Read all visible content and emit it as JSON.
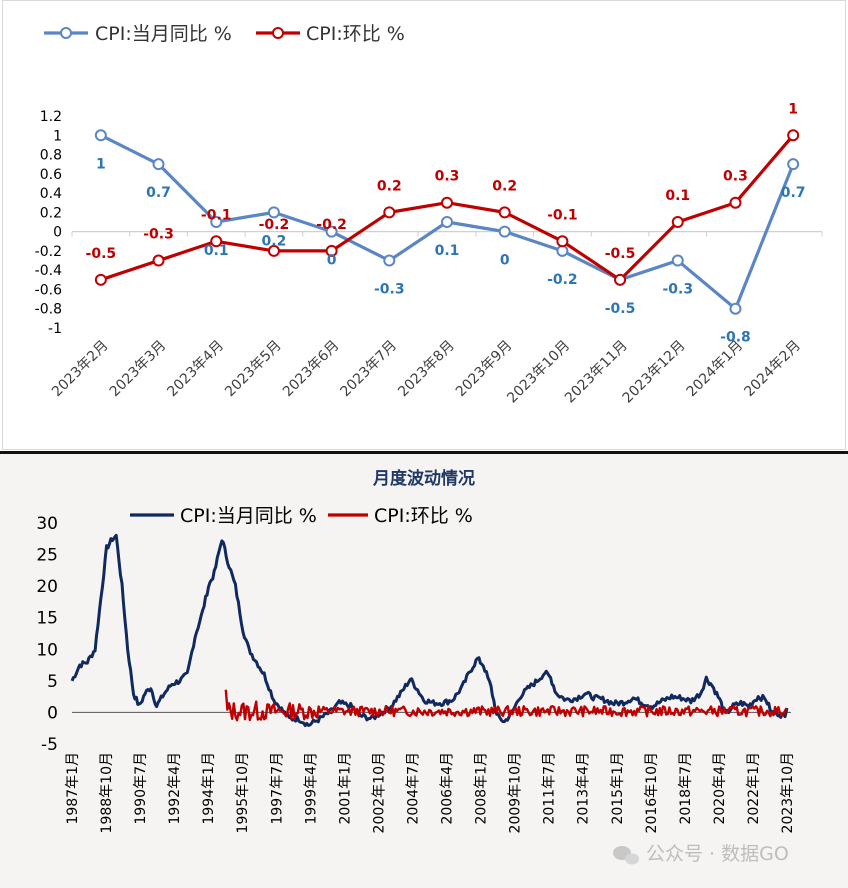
{
  "chart_data": [
    {
      "type": "line",
      "title": "",
      "categories": [
        "2023年2月",
        "2023年3月",
        "2023年4月",
        "2023年5月",
        "2023年6月",
        "2023年7月",
        "2023年8月",
        "2023年9月",
        "2023年10月",
        "2023年11月",
        "2023年12月",
        "2024年1月",
        "2024年2月"
      ],
      "ylim": [
        -1,
        1.2
      ],
      "yticks": [
        "1.2",
        "1",
        "0.8",
        "0.6",
        "0.4",
        "0.2",
        "0",
        "-0.2",
        "-0.4",
        "-0.6",
        "-0.8",
        "-1"
      ],
      "legend": "top-left",
      "series": [
        {
          "name": "CPI:当月同比 %",
          "color": "#5b86c4",
          "values": [
            1,
            0.7,
            0.1,
            0.2,
            0,
            -0.3,
            0.1,
            0,
            -0.2,
            -0.5,
            -0.3,
            -0.8,
            0.7
          ],
          "labels": [
            "1",
            "0.7",
            "0.1",
            "0.2",
            "0",
            "-0.3",
            "0.1",
            "0",
            "-0.2",
            "-0.5",
            "-0.3",
            "-0.8",
            "0.7"
          ]
        },
        {
          "name": "CPI:环比 %",
          "color": "#c00000",
          "values": [
            -0.5,
            -0.3,
            -0.1,
            -0.2,
            -0.2,
            0.2,
            0.3,
            0.2,
            -0.1,
            -0.5,
            0.1,
            0.3,
            1
          ],
          "labels": [
            "-0.5",
            "-0.3",
            "-0.1",
            "-0.2",
            "-0.2",
            "0.2",
            "0.3",
            "0.2",
            "-0.1",
            "-0.5",
            "0.1",
            "0.3",
            "1"
          ]
        }
      ]
    },
    {
      "type": "line",
      "title": "月度波动情况",
      "ylim": [
        -5,
        30
      ],
      "yticks": [
        "30",
        "25",
        "20",
        "15",
        "10",
        "5",
        "0",
        "-5"
      ],
      "xticks": [
        "1987年1月",
        "1988年10月",
        "1990年7月",
        "1992年4月",
        "1994年1月",
        "1995年10月",
        "1997年7月",
        "1999年4月",
        "2001年1月",
        "2002年10月",
        "2004年7月",
        "2006年4月",
        "2008年1月",
        "2009年10月",
        "2011年7月",
        "2013年4月",
        "2015年1月",
        "2016年10月",
        "2018年7月",
        "2020年4月",
        "2022年1月",
        "2023年10月"
      ],
      "legend": "top",
      "series": [
        {
          "name": "CPI:当月同比 %",
          "color": "#102a5f",
          "anchors": [
            [
              1987.0,
              5
            ],
            [
              1987.4,
              7.5
            ],
            [
              1987.8,
              8
            ],
            [
              1988.2,
              10
            ],
            [
              1988.5,
              18
            ],
            [
              1988.8,
              26
            ],
            [
              1989.1,
              27.5
            ],
            [
              1989.3,
              28
            ],
            [
              1989.6,
              20
            ],
            [
              1989.9,
              10
            ],
            [
              1990.2,
              3
            ],
            [
              1990.5,
              1
            ],
            [
              1990.8,
              3
            ],
            [
              1991.1,
              4
            ],
            [
              1991.4,
              1
            ],
            [
              1991.8,
              3
            ],
            [
              1992.2,
              4.5
            ],
            [
              1992.6,
              5
            ],
            [
              1993.0,
              6
            ],
            [
              1993.4,
              12
            ],
            [
              1993.8,
              16
            ],
            [
              1994.1,
              20
            ],
            [
              1994.4,
              22
            ],
            [
              1994.8,
              27.5
            ],
            [
              1995.1,
              24
            ],
            [
              1995.5,
              20
            ],
            [
              1995.9,
              13
            ],
            [
              1996.2,
              10
            ],
            [
              1996.6,
              8
            ],
            [
              1997.0,
              6
            ],
            [
              1997.5,
              2
            ],
            [
              1997.9,
              0.5
            ],
            [
              1998.3,
              -1
            ],
            [
              1998.8,
              -1
            ],
            [
              1999.3,
              -2
            ],
            [
              1999.9,
              -1
            ],
            [
              2000.4,
              0
            ],
            [
              2000.9,
              1.5
            ],
            [
              2001.5,
              1
            ],
            [
              2002.0,
              -0.5
            ],
            [
              2002.6,
              -1
            ],
            [
              2003.1,
              0
            ],
            [
              2003.6,
              1
            ],
            [
              2004.1,
              3
            ],
            [
              2004.6,
              5.3
            ],
            [
              2004.9,
              4
            ],
            [
              2005.3,
              2
            ],
            [
              2005.8,
              1.5
            ],
            [
              2006.3,
              1.5
            ],
            [
              2006.8,
              2
            ],
            [
              2007.3,
              4
            ],
            [
              2007.7,
              6.5
            ],
            [
              2008.1,
              8.5
            ],
            [
              2008.4,
              7.5
            ],
            [
              2008.8,
              4
            ],
            [
              2009.1,
              -0.5
            ],
            [
              2009.5,
              -1.5
            ],
            [
              2009.9,
              0
            ],
            [
              2010.3,
              2.5
            ],
            [
              2010.8,
              4
            ],
            [
              2011.2,
              5
            ],
            [
              2011.6,
              6.3
            ],
            [
              2011.9,
              5.5
            ],
            [
              2012.2,
              3
            ],
            [
              2012.7,
              2
            ],
            [
              2013.2,
              2.2
            ],
            [
              2013.7,
              3
            ],
            [
              2014.2,
              2.3
            ],
            [
              2014.7,
              2
            ],
            [
              2015.2,
              1.4
            ],
            [
              2015.7,
              1.6
            ],
            [
              2016.2,
              2.3
            ],
            [
              2016.7,
              1.5
            ],
            [
              2017.2,
              1
            ],
            [
              2017.7,
              1.8
            ],
            [
              2018.2,
              2.5
            ],
            [
              2018.7,
              2.3
            ],
            [
              2019.2,
              1.8
            ],
            [
              2019.7,
              3
            ],
            [
              2020.0,
              5.4
            ],
            [
              2020.3,
              4.3
            ],
            [
              2020.7,
              2
            ],
            [
              2021.0,
              -0.3
            ],
            [
              2021.4,
              1
            ],
            [
              2021.8,
              1.5
            ],
            [
              2022.2,
              1
            ],
            [
              2022.7,
              2.5
            ],
            [
              2023.1,
              2.1
            ],
            [
              2023.4,
              0
            ],
            [
              2023.8,
              -0.2
            ],
            [
              2024.1,
              -0.8
            ],
            [
              2024.2,
              0.7
            ]
          ]
        },
        {
          "name": "CPI:环比 %",
          "color": "#c00000",
          "start": 1995.0,
          "end": 2024.2
        }
      ]
    }
  ],
  "watermark": "公众号 · 数据GO",
  "colors": {
    "top_blue": "#5b86c4",
    "top_red": "#c00000",
    "bottom_navy": "#102a5f",
    "bottom_red": "#c00000",
    "bottom_bg": "#f6f4f2"
  }
}
